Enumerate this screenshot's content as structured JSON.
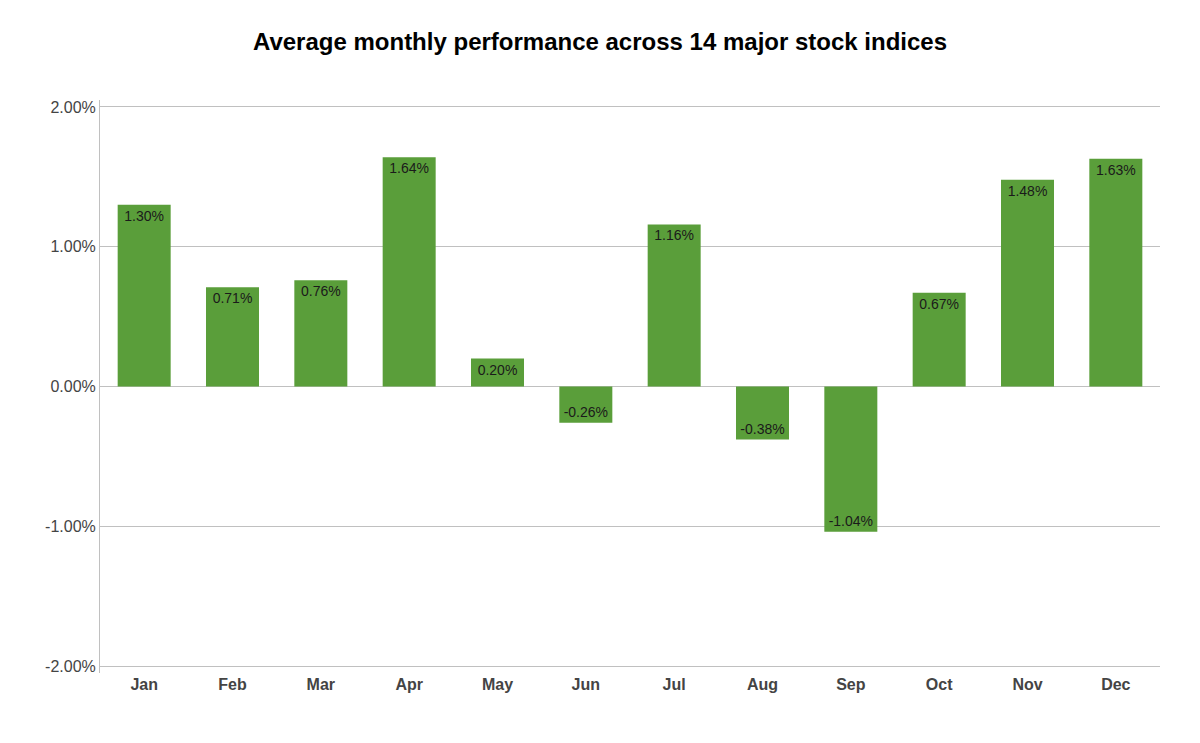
{
  "chart_data": {
    "type": "bar",
    "title": "Average monthly performance across 14 major stock indices",
    "categories": [
      "Jan",
      "Feb",
      "Mar",
      "Apr",
      "May",
      "Jun",
      "Jul",
      "Aug",
      "Sep",
      "Oct",
      "Nov",
      "Dec"
    ],
    "values": [
      1.3,
      0.71,
      0.76,
      1.64,
      0.2,
      -0.26,
      1.16,
      -0.38,
      -1.04,
      0.67,
      1.48,
      1.63
    ],
    "value_labels": [
      "1.30%",
      "0.71%",
      "0.76%",
      "1.64%",
      "0.20%",
      "-0.26%",
      "1.16%",
      "-0.38%",
      "-1.04%",
      "0.67%",
      "1.48%",
      "1.63%"
    ],
    "data_labels": true,
    "color": "#5a9e3a",
    "ylim": [
      -2.05,
      2.05
    ],
    "yticks": [
      {
        "value": -2.0,
        "label": "-2.00%"
      },
      {
        "value": -1.0,
        "label": "-1.00%"
      },
      {
        "value": 0.0,
        "label": "0.00%"
      },
      {
        "value": 1.0,
        "label": "1.00%"
      },
      {
        "value": 2.0,
        "label": "2.00%"
      }
    ],
    "grid": true
  }
}
